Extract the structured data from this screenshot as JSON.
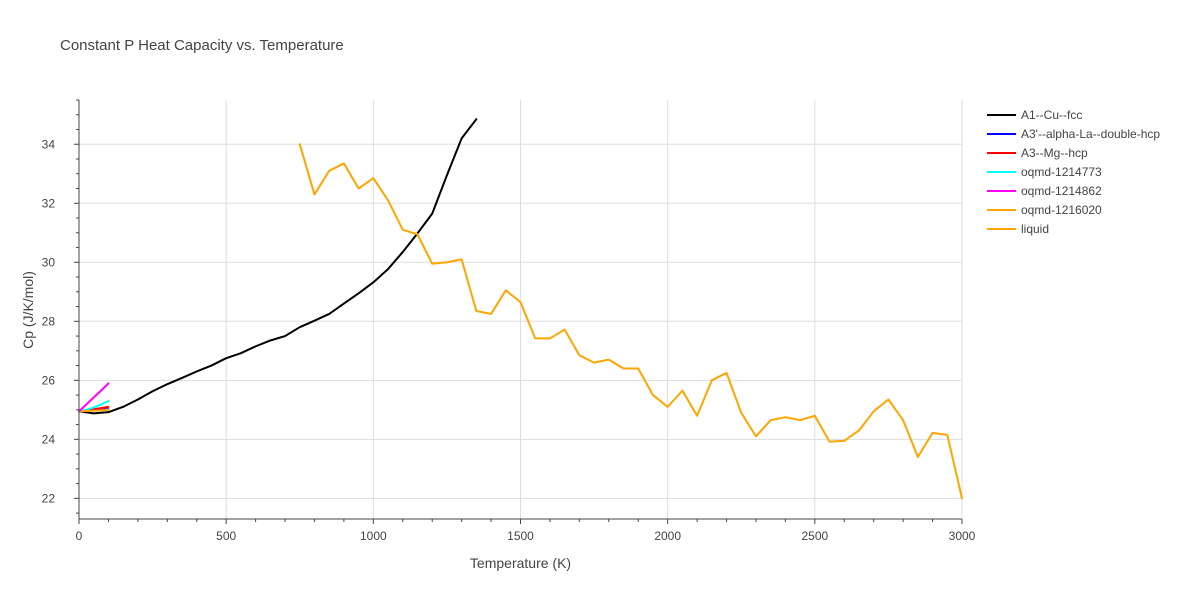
{
  "chart_data": {
    "type": "line",
    "title": "Constant P Heat Capacity vs. Temperature",
    "xlabel": "Temperature (K)",
    "ylabel": "Cp (J/K/mol)",
    "xlim": [
      0,
      3000
    ],
    "ylim": [
      21.3,
      35.5
    ],
    "xticks": [
      0,
      500,
      1000,
      1500,
      2000,
      2500,
      3000
    ],
    "yticks": [
      22,
      24,
      26,
      28,
      30,
      32,
      34
    ],
    "grid": true,
    "legend_position": "top-right",
    "series": [
      {
        "name": "A1--Cu--fcc",
        "color": "#000000",
        "x": [
          0,
          50,
          100,
          150,
          200,
          250,
          300,
          350,
          400,
          450,
          500,
          550,
          600,
          650,
          700,
          750,
          800,
          850,
          900,
          950,
          1000,
          1050,
          1100,
          1150,
          1200,
          1250,
          1300,
          1350
        ],
        "y": [
          24.95,
          24.88,
          24.92,
          25.1,
          25.35,
          25.63,
          25.87,
          26.08,
          26.3,
          26.5,
          26.75,
          26.92,
          27.15,
          27.35,
          27.5,
          27.8,
          28.02,
          28.25,
          28.6,
          28.95,
          29.32,
          29.77,
          30.35,
          30.98,
          31.65,
          32.95,
          34.2,
          34.85
        ]
      },
      {
        "name": "A3'--alpha-La--double-hcp",
        "color": "#0000ff",
        "x": [
          0,
          25,
          50,
          75,
          100
        ],
        "y": [
          24.95,
          24.97,
          24.99,
          25.0,
          25.02
        ]
      },
      {
        "name": "A3--Mg--hcp",
        "color": "#ff0000",
        "x": [
          0,
          25,
          50,
          75,
          100
        ],
        "y": [
          24.95,
          24.98,
          25.02,
          25.06,
          25.1
        ]
      },
      {
        "name": "oqmd-1214773",
        "color": "#00ffff",
        "x": [
          0,
          25,
          50,
          75,
          100
        ],
        "y": [
          24.95,
          25.0,
          25.08,
          25.18,
          25.3
        ]
      },
      {
        "name": "oqmd-1214862",
        "color": "#ff00ff",
        "x": [
          0,
          25,
          50,
          75,
          100
        ],
        "y": [
          24.95,
          25.18,
          25.42,
          25.65,
          25.9
        ]
      },
      {
        "name": "oqmd-1216020",
        "color": "#ffa500",
        "x": [
          0,
          50,
          100
        ],
        "y": [
          24.95,
          24.97,
          25.0
        ]
      },
      {
        "name": "liquid",
        "color": "#ffa500",
        "x": [
          750,
          800,
          850,
          900,
          950,
          1000,
          1050,
          1100,
          1150,
          1200,
          1250,
          1300,
          1350,
          1400,
          1450,
          1500,
          1550,
          1600,
          1650,
          1700,
          1750,
          1800,
          1850,
          1900,
          1950,
          2000,
          2050,
          2100,
          2150,
          2200,
          2250,
          2300,
          2350,
          2400,
          2450,
          2500,
          2550,
          2600,
          2650,
          2700,
          2750,
          2800,
          2850,
          2900,
          2950,
          3000
        ],
        "y": [
          34.0,
          32.3,
          33.1,
          33.35,
          32.5,
          32.85,
          32.1,
          31.1,
          30.95,
          29.95,
          30.0,
          30.1,
          28.35,
          28.25,
          29.05,
          28.65,
          27.42,
          27.42,
          27.72,
          26.85,
          26.6,
          26.7,
          26.4,
          26.4,
          25.5,
          25.1,
          25.65,
          24.8,
          26.0,
          26.25,
          24.9,
          24.1,
          24.65,
          24.75,
          24.65,
          24.8,
          23.92,
          23.95,
          24.3,
          24.95,
          25.35,
          24.65,
          23.4,
          24.22,
          24.15,
          22.0
        ]
      }
    ]
  }
}
